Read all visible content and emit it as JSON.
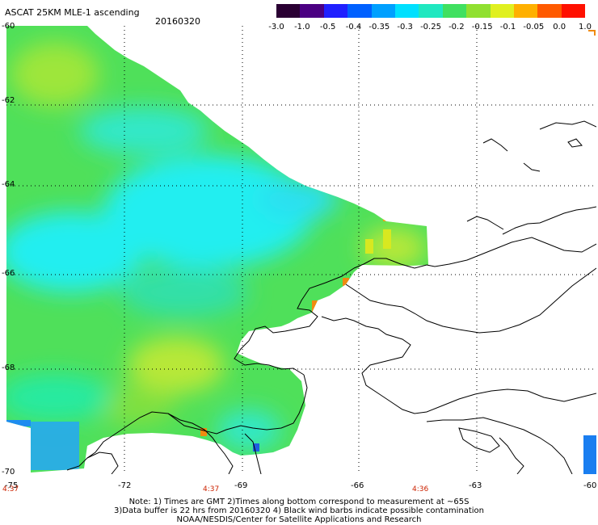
{
  "header": {
    "title": "ASCAT 25KM MLE-1 ascending",
    "date": "20160320"
  },
  "colorbar": {
    "labels": [
      "-3.0",
      "-1.0",
      "-0.5",
      "-0.4",
      "-0.35",
      "-0.3",
      "-0.25",
      "-0.2",
      "-0.15",
      "-0.1",
      "-0.05",
      "0.0",
      "1.0"
    ],
    "colors": [
      "#2a0033",
      "#4b0082",
      "#2020ff",
      "#0060ff",
      "#00a0ff",
      "#00e0ff",
      "#20e8c0",
      "#40e060",
      "#90e030",
      "#e0f020",
      "#ffb000",
      "#ff5a00",
      "#ff1000"
    ]
  },
  "map": {
    "lat_labels": [
      "-60",
      "-62",
      "-64",
      "-66",
      "-68",
      "-70"
    ],
    "lon_labels": [
      "-75",
      "-72",
      "-69",
      "-66",
      "-63",
      "-60"
    ],
    "time_labels": [
      "4:37",
      "4:37",
      "4:36"
    ],
    "colors": {
      "field_base": "#4fe05a",
      "field_cyan": "#22eef0",
      "field_blue": "#27aaee",
      "field_yellow": "#c0e838",
      "field_orange": "#f08a10",
      "legend_bar": "#1a7ef0",
      "coastline": "#000000",
      "grid": "#000000"
    }
  },
  "notes": {
    "line1": "Note: 1) Times are GMT 2)Times along bottom correspond to measurement at ~65S",
    "line2": "3)Data buffer is 22 hrs from 20160320 4) Black wind barbs indicate possible contamination",
    "line3": "NOAA/NESDIS/Center for Satellite Applications and Research"
  }
}
